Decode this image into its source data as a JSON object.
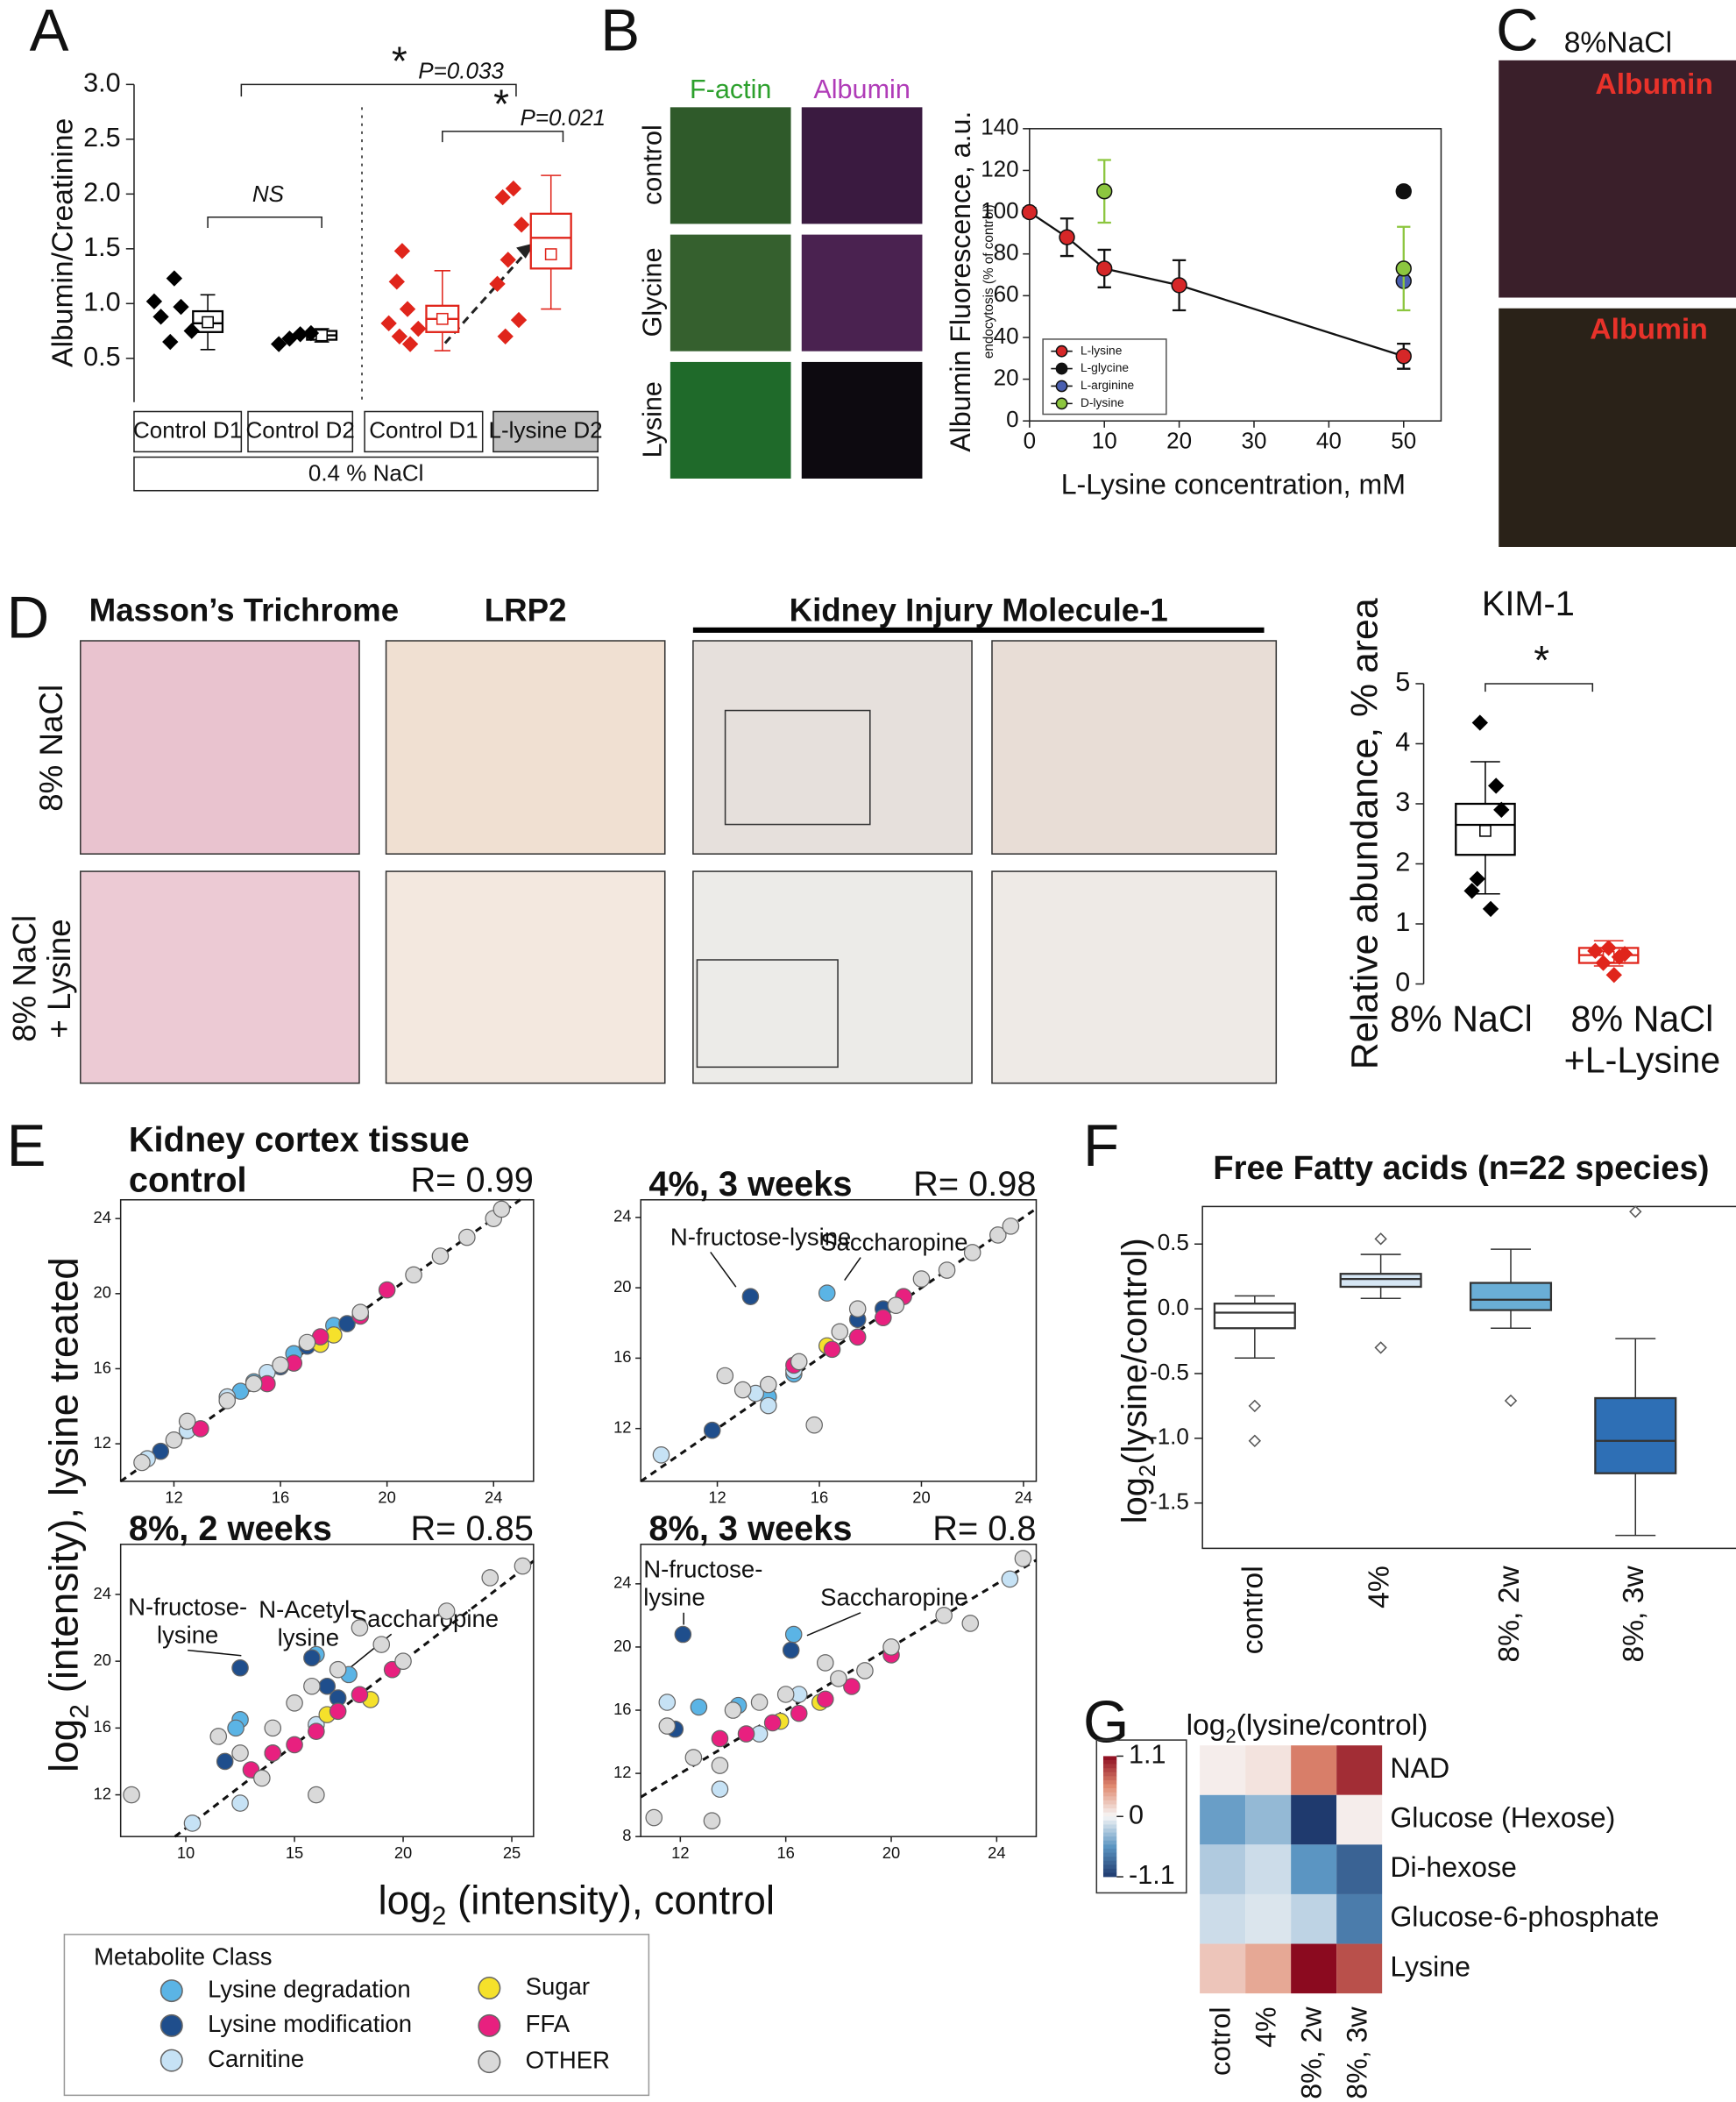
{
  "figure": {
    "panel_labels": [
      "A",
      "B",
      "C",
      "D",
      "E",
      "F",
      "G"
    ],
    "b_images": {
      "columns": [
        "F-actin",
        "Albumin"
      ],
      "rows": [
        "control",
        "Glycine",
        "Lysine"
      ]
    },
    "c_images": {
      "title": "8%NaCl",
      "labels": [
        "Albumin",
        "Albumin"
      ]
    },
    "d_images": {
      "columns": [
        "Masson’s Trichrome",
        "LRP2",
        "Kidney Injury Molecule-1"
      ],
      "rows": [
        [
          "8% NaCl"
        ],
        [
          "8% NaCl",
          "+ Lysine"
        ]
      ]
    }
  },
  "chart_data": [
    {
      "type": "box",
      "y_label": "Albumin/Creatinine",
      "ylim": [
        0.1,
        3.0
      ],
      "yticks": [
        {
          "value": 3,
          "label": "3.0"
        },
        2.5,
        {
          "value": 2,
          "label": "2.0"
        },
        1.5,
        {
          "value": 1,
          "label": "1.0"
        },
        0.5
      ],
      "groups": [
        {
          "name": "Control D1",
          "color": "#000000",
          "points": [
            1.23,
            1.02,
            0.97,
            0.88,
            0.75,
            0.65
          ],
          "box": {
            "min": 0.58,
            "q1": 0.74,
            "median": 0.82,
            "mean": 0.83,
            "q3": 0.93,
            "max": 1.08
          }
        },
        {
          "name": "Control D2",
          "color": "#000000",
          "points": [
            0.63,
            0.68,
            0.72,
            0.73
          ],
          "box": {
            "min": 0.65,
            "q1": 0.67,
            "median": 0.71,
            "mean": 0.71,
            "q3": 0.75,
            "max": 0.77
          }
        },
        {
          "name": "Control D1",
          "color": "#e0251b",
          "points": [
            1.48,
            1.2,
            0.95,
            0.82,
            0.77,
            0.7,
            0.63
          ],
          "box": {
            "min": 0.57,
            "q1": 0.74,
            "median": 0.86,
            "mean": 0.86,
            "q3": 0.98,
            "max": 1.3
          }
        },
        {
          "name": "L-lysine D2",
          "color": "#e0251b",
          "points": [
            2.05,
            1.97,
            1.72,
            1.4,
            1.18,
            0.85,
            0.7
          ],
          "box": {
            "min": 0.95,
            "q1": 1.32,
            "median": 1.6,
            "mean": 1.45,
            "q3": 1.82,
            "max": 2.17
          }
        }
      ],
      "group_note": "0.4 % NaCl",
      "annotations": [
        "*",
        "P=0.033",
        "*",
        "P=0.021",
        "NS"
      ]
    },
    {
      "type": "line",
      "y_label": "Albumin Fluorescence, a.u.",
      "y_sublabel": "endocytosis (% of control)",
      "x_label": "L-Lysine concentration, mM",
      "xlim": [
        0,
        55
      ],
      "xticks": [
        0,
        10,
        20,
        30,
        40,
        50
      ],
      "ylim": [
        0,
        140
      ],
      "yticks": [
        0,
        20,
        40,
        60,
        80,
        100,
        120,
        140
      ],
      "series": [
        {
          "name": "L-lysine",
          "color": "#d62728",
          "line": true,
          "x": [
            0,
            5,
            10,
            20,
            50
          ],
          "values": [
            100,
            88,
            73,
            65,
            31
          ],
          "errors": [
            2,
            9,
            9,
            12,
            6
          ]
        },
        {
          "name": "L-glycine",
          "color": "#111111",
          "x": [
            50
          ],
          "values": [
            110
          ],
          "errors": [
            2
          ]
        },
        {
          "name": "L-arginine",
          "color": "#4a5fb0",
          "x": [
            50
          ],
          "values": [
            67
          ]
        },
        {
          "name": "D-lysine",
          "color": "#8cc63f",
          "x": [
            10,
            50
          ],
          "values": [
            110,
            73
          ],
          "errors": [
            15,
            20
          ]
        }
      ]
    },
    {
      "type": "box",
      "title": "KIM-1",
      "y_label": "Relative abundance, % area",
      "ylim": [
        0,
        5
      ],
      "yticks": [
        0,
        1,
        2,
        3,
        4,
        5
      ],
      "groups": [
        {
          "name": [
            "8% NaCl"
          ],
          "color": "#000000",
          "points": [
            4.35,
            3.3,
            2.9,
            1.75,
            1.55,
            1.25
          ],
          "box": {
            "min": 1.5,
            "q1": 2.15,
            "median": 2.65,
            "mean": 2.55,
            "q3": 3.0,
            "max": 3.7
          }
        },
        {
          "name": [
            "8% NaCl",
            "+L-Lysine"
          ],
          "color": "#e0251b",
          "points": [
            0.6,
            0.55,
            0.5,
            0.45,
            0.35,
            0.15
          ],
          "box": {
            "min": 0.3,
            "q1": 0.35,
            "median": 0.48,
            "mean": 0.45,
            "q3": 0.6,
            "max": 0.72
          }
        }
      ],
      "annotations": [
        "*"
      ]
    },
    {
      "type": "scatter",
      "heading": "Kidney cortex tissue",
      "title": "control",
      "r_label": "R= 0.99",
      "y_label": {
        "text": "log",
        "sub": "2",
        "rest": " (intensity), lysine treated"
      },
      "x_label": {
        "text": "log",
        "sub": "2",
        "rest": " (intensity), control"
      },
      "legend_title": "Metabolite Class",
      "xlim": [
        10,
        25.5
      ],
      "xticks": [
        12,
        16,
        20,
        24
      ],
      "ylim": [
        10,
        25
      ],
      "yticks": [
        12,
        16,
        20,
        24
      ],
      "series": [
        {
          "name": "Lysine degradation",
          "color": "#5bb4e5",
          "x": [
            15,
            16.5,
            18,
            14.5
          ],
          "values": [
            15.3,
            16.8,
            18.3,
            14.8
          ]
        },
        {
          "name": "Lysine modification",
          "color": "#1f4e8c",
          "x": [
            11.5,
            17,
            18.5,
            16
          ],
          "values": [
            11.6,
            17.2,
            18.4,
            16.1
          ]
        },
        {
          "name": "Carnitine",
          "color": "#c6e2f5",
          "x": [
            11,
            12.5,
            14,
            15.5
          ],
          "values": [
            11.2,
            12.7,
            14.5,
            15.8
          ]
        },
        {
          "name": "Sugar",
          "color": "#f5e12b",
          "x": [
            18,
            17.5
          ],
          "values": [
            17.8,
            17.3
          ]
        },
        {
          "name": "FFA",
          "color": "#e8207f",
          "x": [
            13,
            15.5,
            16.5,
            17.5,
            19,
            20
          ],
          "values": [
            12.8,
            15.2,
            16.3,
            17.7,
            18.8,
            20.2
          ]
        },
        {
          "name": "OTHER",
          "color": "#d9d9d9",
          "x": [
            10.8,
            12,
            12.5,
            14,
            15,
            16,
            17,
            19,
            21,
            22,
            23,
            24,
            24.3
          ],
          "values": [
            11,
            12.2,
            13.2,
            14.3,
            15.2,
            16.2,
            17.4,
            19,
            21,
            22,
            23,
            24,
            24.5
          ]
        }
      ],
      "annotations": []
    },
    {
      "type": "scatter",
      "title": "4%, 3 weeks",
      "r_label": "R= 0.98",
      "xlim": [
        9,
        24.5
      ],
      "xticks": [
        12,
        16,
        20,
        24
      ],
      "ylim": [
        9,
        25
      ],
      "yticks": [
        12,
        16,
        20,
        24
      ],
      "series": [
        {
          "color": "#5bb4e5",
          "x": [
            16.3,
            14,
            15
          ],
          "values": [
            19.7,
            13.8,
            15.1
          ]
        },
        {
          "color": "#1f4e8c",
          "x": [
            13.3,
            17.5,
            11.8,
            18.5
          ],
          "values": [
            19.5,
            18.2,
            11.9,
            18.8
          ]
        },
        {
          "color": "#c6e2f5",
          "x": [
            9.8,
            13.5,
            14,
            15
          ],
          "values": [
            10.5,
            14,
            13.3,
            15.3
          ]
        },
        {
          "color": "#f5e12b",
          "x": [
            16.3
          ],
          "values": [
            16.7
          ]
        },
        {
          "color": "#e8207f",
          "x": [
            15,
            16.5,
            17.5,
            18.5,
            19.3
          ],
          "values": [
            15.6,
            16.5,
            17.2,
            18.3,
            19.5
          ]
        },
        {
          "color": "#d9d9d9",
          "x": [
            12.3,
            13,
            14,
            15.2,
            15.8,
            16.8,
            17.5,
            19,
            20,
            21,
            22,
            23,
            23.5
          ],
          "values": [
            15,
            14.2,
            14.5,
            15.8,
            12.2,
            17.5,
            18.8,
            19,
            20.5,
            21,
            22,
            23,
            23.5
          ]
        }
      ],
      "annotations": [
        [
          "N-fructose-lysine"
        ],
        [
          "Saccharopine"
        ]
      ]
    },
    {
      "type": "scatter",
      "title": "8%, 2 weeks",
      "r_label": "R= 0.85",
      "xlim": [
        7,
        26
      ],
      "xticks": [
        10,
        15,
        20,
        25
      ],
      "ylim": [
        9.5,
        27
      ],
      "yticks": [
        12,
        16,
        20,
        24
      ],
      "series": [
        {
          "color": "#5bb4e5",
          "x": [
            12.5,
            12.3,
            16,
            17.5
          ],
          "values": [
            16.5,
            16,
            20.4,
            19.2
          ]
        },
        {
          "color": "#1f4e8c",
          "x": [
            12.5,
            11.8,
            15.8,
            16.5,
            17
          ],
          "values": [
            19.6,
            14,
            20.2,
            18.5,
            17.8
          ]
        },
        {
          "color": "#c6e2f5",
          "x": [
            10.3,
            12.5,
            14,
            16
          ],
          "values": [
            10.3,
            11.5,
            14.5,
            16.2
          ]
        },
        {
          "color": "#f5e12b",
          "x": [
            16.5,
            18.5
          ],
          "values": [
            16.8,
            17.7
          ]
        },
        {
          "color": "#e8207f",
          "x": [
            13,
            14,
            15,
            16,
            17,
            18,
            19.5
          ],
          "values": [
            13.5,
            14.5,
            15,
            15.8,
            17,
            18,
            19.5
          ]
        },
        {
          "color": "#d9d9d9",
          "x": [
            7.5,
            11.5,
            12.5,
            13.5,
            14,
            15,
            15.8,
            16,
            17,
            18,
            19,
            20,
            22,
            24,
            25.5
          ],
          "values": [
            12,
            15.5,
            14.5,
            13,
            16,
            17.5,
            18.5,
            12,
            19.5,
            22,
            21,
            20,
            23,
            25,
            25.7
          ]
        }
      ],
      "annotations": [
        [
          "N-fructose-",
          "lysine"
        ],
        [
          "N-Acetyl-",
          "lysine"
        ],
        [
          "Saccharopine"
        ]
      ]
    },
    {
      "type": "scatter",
      "title": "8%, 3 weeks",
      "r_label": "R= 0.8",
      "xlim": [
        10.5,
        25.5
      ],
      "xticks": [
        12,
        16,
        20,
        24
      ],
      "ylim": [
        8,
        26.5
      ],
      "yticks": [
        8,
        12,
        16,
        20,
        24
      ],
      "series": [
        {
          "color": "#5bb4e5",
          "x": [
            12.7,
            16.3,
            14.2
          ],
          "values": [
            16.2,
            20.8,
            16.3
          ]
        },
        {
          "color": "#1f4e8c",
          "x": [
            12.1,
            16.2,
            11.8
          ],
          "values": [
            20.8,
            19.8,
            14.8
          ]
        },
        {
          "color": "#c6e2f5",
          "x": [
            11.5,
            13.5,
            15,
            16.5,
            24.5
          ],
          "values": [
            16.5,
            11,
            14.5,
            17,
            24.3
          ]
        },
        {
          "color": "#f5e12b",
          "x": [
            15.8,
            17.3
          ],
          "values": [
            15.3,
            16.5
          ]
        },
        {
          "color": "#e8207f",
          "x": [
            13.5,
            14.5,
            15.5,
            16.5,
            17.5,
            18.5,
            20
          ],
          "values": [
            14.2,
            14.5,
            15.2,
            15.8,
            16.7,
            17.5,
            19.5
          ]
        },
        {
          "color": "#d9d9d9",
          "x": [
            11,
            11.5,
            12.5,
            13.2,
            13.5,
            14,
            15,
            16,
            17.5,
            18,
            19,
            20,
            22,
            23,
            25
          ],
          "values": [
            9.2,
            15,
            13,
            9,
            12.5,
            16,
            16.5,
            17,
            19,
            18,
            18.5,
            20,
            22,
            21.5,
            25.6
          ]
        }
      ],
      "annotations": [
        [
          "N-fructose-",
          "lysine"
        ],
        [
          "Saccharopine"
        ]
      ]
    },
    {
      "type": "box",
      "title": "Free Fatty acids (n=22 species)",
      "y_label": {
        "text": "log",
        "sub": "2",
        "rest": "(lysine/control)"
      },
      "ylim": [
        -1.85,
        0.79
      ],
      "yticks": [
        0.5,
        {
          "value": 0,
          "label": "0.0"
        },
        -0.5,
        {
          "value": -1,
          "label": "-1.0"
        },
        -1.5
      ],
      "groups": [
        {
          "name": "control",
          "color": "#ffffff",
          "outliers": [
            -0.75,
            -1.02
          ],
          "box": {
            "min": -0.38,
            "q1": -0.15,
            "median": -0.03,
            "q3": 0.04,
            "max": 0.1
          }
        },
        {
          "name": "4%",
          "color": "#d6e6f4",
          "outliers": [
            0.54,
            -0.3
          ],
          "box": {
            "min": 0.08,
            "q1": 0.17,
            "median": 0.23,
            "q3": 0.27,
            "max": 0.42
          }
        },
        {
          "name": "8%, 2w",
          "color": "#6aaed6",
          "outliers": [
            -0.71
          ],
          "box": {
            "min": -0.15,
            "q1": -0.01,
            "median": 0.07,
            "q3": 0.2,
            "max": 0.46
          }
        },
        {
          "name": "8%, 3w",
          "color": "#2e6fb5",
          "outliers": [
            0.75
          ],
          "box": {
            "min": -1.75,
            "q1": -1.27,
            "median": -1.02,
            "q3": -0.69,
            "max": -0.23
          }
        }
      ]
    },
    {
      "type": "heatmap",
      "title": {
        "text": "log",
        "sub": "2",
        "rest": "(lysine/control)"
      },
      "rows": [
        "NAD",
        "Glucose (Hexose)",
        "Di-hexose",
        "Glucose-6-phosphate",
        "Lysine"
      ],
      "columns": [
        "cotrol",
        "4%",
        "8%, 2w",
        "8%, 3w"
      ],
      "values": [
        [
          0.05,
          0.1,
          0.6,
          0.95
        ],
        [
          -0.5,
          -0.35,
          -1.1,
          0.05
        ],
        [
          -0.25,
          -0.15,
          -0.55,
          -0.85
        ],
        [
          -0.15,
          -0.1,
          -0.2,
          -0.7
        ],
        [
          0.25,
          0.4,
          1.1,
          0.8
        ]
      ],
      "clim": [
        -1.1,
        1.1
      ],
      "cticks": [
        1.1,
        0,
        -1.1
      ]
    }
  ]
}
